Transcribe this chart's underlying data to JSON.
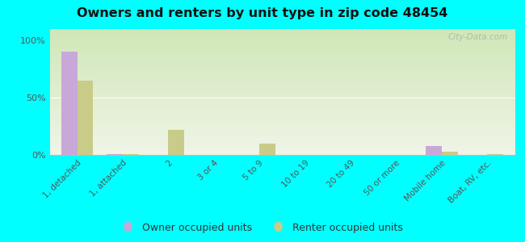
{
  "title": "Owners and renters by unit type in zip code 48454",
  "categories": [
    "1, detached",
    "1, attached",
    "2",
    "3 or 4",
    "5 to 9",
    "10 to 19",
    "20 to 49",
    "50 or more",
    "Mobile home",
    "Boat, RV, etc."
  ],
  "owner_values": [
    90,
    1,
    0,
    0,
    0,
    0,
    0,
    0,
    8,
    0
  ],
  "renter_values": [
    65,
    1,
    22,
    0,
    10,
    0,
    0,
    0,
    3,
    1
  ],
  "owner_color": "#c8a8d8",
  "renter_color": "#c8cc88",
  "outer_bg": "#00ffff",
  "yticks": [
    0,
    50,
    100
  ],
  "ylabels": [
    "0%",
    "50%",
    "100%"
  ],
  "watermark": "City-Data.com",
  "legend_owner": "Owner occupied units",
  "legend_renter": "Renter occupied units",
  "bar_width": 0.35,
  "title_fontsize": 11.5
}
